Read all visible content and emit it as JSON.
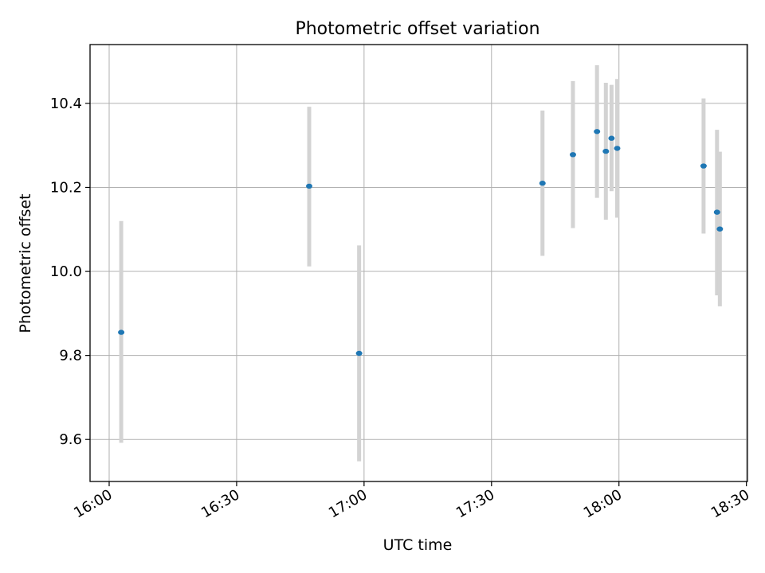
{
  "chart_data": {
    "type": "scatter",
    "title": "Photometric offset variation",
    "xlabel": "UTC time",
    "ylabel": "Photometric offset",
    "x_ticks": [
      "16:00",
      "16:30",
      "17:00",
      "17:30",
      "18:00",
      "18:30"
    ],
    "y_ticks": [
      "9.6",
      "9.8",
      "10.0",
      "10.2",
      "10.4"
    ],
    "xlim": [
      "15:55:30",
      "18:30:15"
    ],
    "ylim": [
      9.5,
      10.54
    ],
    "grid": true,
    "errorbar_color": "#d3d3d3",
    "marker_color": "#1f77b4",
    "points": [
      {
        "time": "16:02:50",
        "y": 9.855,
        "ylow": 9.592,
        "yhigh": 10.12
      },
      {
        "time": "16:47:05",
        "y": 10.203,
        "ylow": 10.012,
        "yhigh": 10.392
      },
      {
        "time": "16:58:50",
        "y": 9.805,
        "ylow": 9.548,
        "yhigh": 10.062
      },
      {
        "time": "17:42:00",
        "y": 10.21,
        "ylow": 10.037,
        "yhigh": 10.383
      },
      {
        "time": "17:49:10",
        "y": 10.278,
        "ylow": 10.103,
        "yhigh": 10.453
      },
      {
        "time": "17:54:50",
        "y": 10.333,
        "ylow": 10.175,
        "yhigh": 10.491
      },
      {
        "time": "17:56:55",
        "y": 10.286,
        "ylow": 10.123,
        "yhigh": 10.449
      },
      {
        "time": "17:58:15",
        "y": 10.317,
        "ylow": 10.191,
        "yhigh": 10.444
      },
      {
        "time": "17:59:35",
        "y": 10.293,
        "ylow": 10.128,
        "yhigh": 10.458
      },
      {
        "time": "18:19:55",
        "y": 10.251,
        "ylow": 10.09,
        "yhigh": 10.412
      },
      {
        "time": "18:23:05",
        "y": 10.141,
        "ylow": 9.943,
        "yhigh": 10.337
      },
      {
        "time": "18:23:45",
        "y": 10.101,
        "ylow": 9.917,
        "yhigh": 10.285
      }
    ]
  }
}
